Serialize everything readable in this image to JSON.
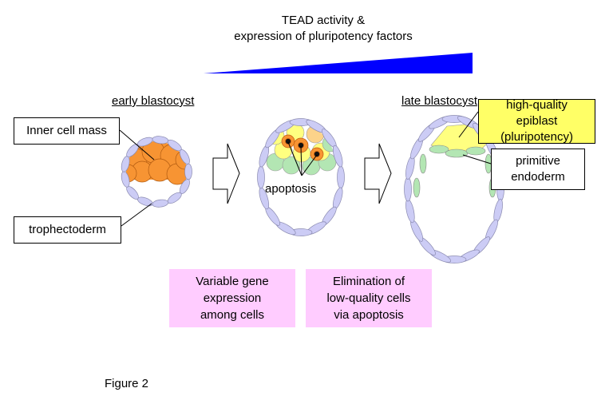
{
  "header": {
    "line1": "TEAD activity &",
    "line2": "expression of pluripotency factors"
  },
  "stages": {
    "early": "early blastocyst",
    "late": "late blastocyst"
  },
  "labels": {
    "icm": "Inner cell mass",
    "trophectoderm": "trophectoderm",
    "apoptosis": "apoptosis",
    "epiblast": [
      "high-quality",
      "epiblast",
      "(pluripotency)"
    ],
    "endoderm": [
      "primitive",
      "endoderm"
    ]
  },
  "notes": {
    "variable": [
      "Variable gene",
      "expression",
      "among cells"
    ],
    "elimination": [
      "Elimination of",
      "low-quality cells",
      "via apoptosis"
    ]
  },
  "caption": "Figure 2",
  "colors": {
    "gradient": "#0000ff",
    "trophectoderm": "#ccccf5",
    "icm": "#f79433",
    "epiblast": "#ffff80",
    "endoderm": "#b3e6b3",
    "note_bg": "#ffccff",
    "epiblast_box": "#ffff66"
  }
}
